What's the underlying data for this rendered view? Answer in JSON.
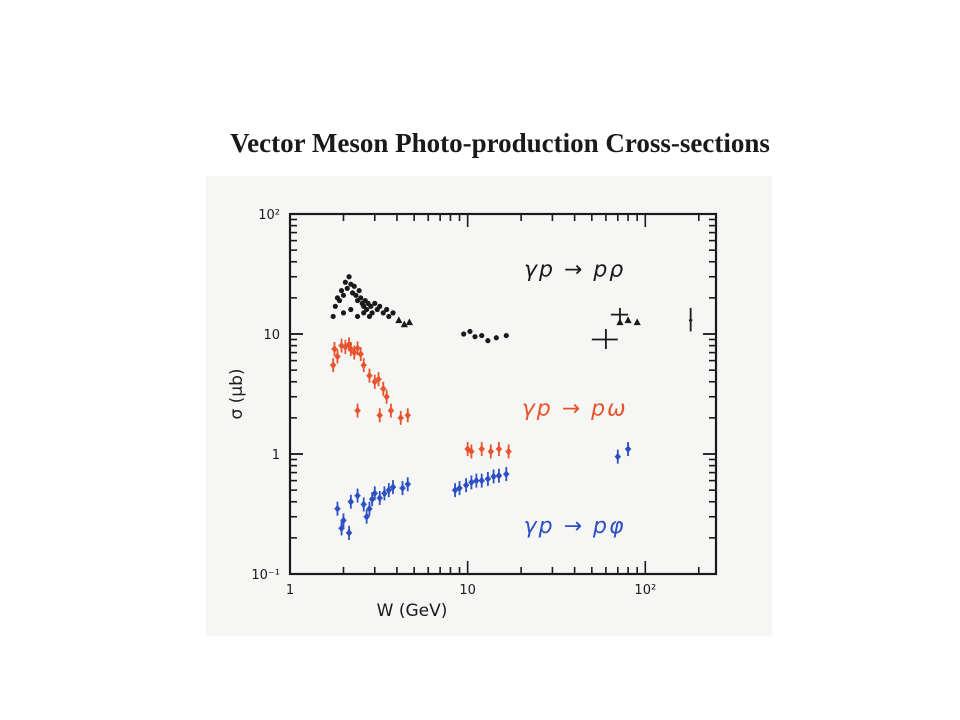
{
  "slide": {
    "title": "Vector Meson Photo-production Cross-sections"
  },
  "colors": {
    "rho": "#1a1a1a",
    "omega": "#e8532d",
    "phi": "#2c4fc4",
    "frame": "#1a1a1a",
    "background": "#f6f7f4"
  },
  "chart_data": {
    "type": "scatter",
    "title": "",
    "xlabel": "W (GeV)",
    "ylabel": "σ (μb)",
    "xscale": "log",
    "yscale": "log",
    "xlim": [
      1,
      250
    ],
    "ylim": [
      0.1,
      100
    ],
    "x_ticks": [
      {
        "value": 1,
        "label": "1"
      },
      {
        "value": 10,
        "label": "10"
      },
      {
        "value": 100,
        "label": "10²"
      }
    ],
    "y_ticks": [
      {
        "value": 0.1,
        "label": "10⁻¹"
      },
      {
        "value": 1,
        "label": "1"
      },
      {
        "value": 10,
        "label": "10"
      },
      {
        "value": 100,
        "label": "10²"
      }
    ],
    "grid": false,
    "series": [
      {
        "key": "rho",
        "marker": "dot",
        "annotation": "γp → pρ",
        "points": [
          [
            1.75,
            14
          ],
          [
            1.8,
            17
          ],
          [
            1.85,
            20
          ],
          [
            1.9,
            19
          ],
          [
            1.95,
            23
          ],
          [
            2.0,
            21
          ],
          [
            2.05,
            27
          ],
          [
            2.1,
            24
          ],
          [
            2.15,
            30
          ],
          [
            2.2,
            26
          ],
          [
            2.25,
            22
          ],
          [
            2.3,
            25
          ],
          [
            2.35,
            21
          ],
          [
            2.4,
            19
          ],
          [
            2.45,
            23
          ],
          [
            2.5,
            20
          ],
          [
            2.55,
            18
          ],
          [
            2.6,
            17
          ],
          [
            2.65,
            19
          ],
          [
            2.7,
            16
          ],
          [
            2.75,
            18
          ],
          [
            2.85,
            17
          ],
          [
            2.9,
            15
          ],
          [
            3.0,
            18
          ],
          [
            3.1,
            16
          ],
          [
            3.2,
            17
          ],
          [
            3.35,
            15
          ],
          [
            3.5,
            16
          ],
          [
            3.6,
            14
          ],
          [
            3.8,
            15
          ],
          [
            2.0,
            15
          ],
          [
            2.2,
            16
          ],
          [
            2.4,
            14
          ],
          [
            2.6,
            15
          ],
          [
            2.8,
            14
          ]
        ]
      },
      {
        "key": "rho-triangles",
        "marker": "triangle",
        "points": [
          [
            4.1,
            13
          ],
          [
            4.4,
            12
          ],
          [
            4.7,
            12.5
          ],
          [
            72,
            12.5
          ],
          [
            80,
            13
          ],
          [
            90,
            12.5
          ]
        ]
      },
      {
        "key": "rho-mid",
        "marker": "dot",
        "points": [
          [
            9.5,
            10
          ],
          [
            10.3,
            10.5
          ],
          [
            11.0,
            9.5
          ],
          [
            12.0,
            9.7
          ],
          [
            13.0,
            8.8
          ],
          [
            14.5,
            9.3
          ],
          [
            16.5,
            9.7
          ]
        ]
      },
      {
        "key": "rho-errorbars",
        "marker": "cross",
        "points": [
          {
            "x": 60,
            "y": 9.0,
            "xerr": [
              50,
              70
            ],
            "yerr": [
              7.5,
              11
            ]
          },
          {
            "x": 72,
            "y": 14.5,
            "xerr": [
              64,
              80
            ],
            "yerr": [
              12.5,
              16.5
            ]
          },
          {
            "x": 180,
            "y": 13.0,
            "xerr": [
              176,
              184
            ],
            "yerr": [
              10.5,
              16.5
            ]
          }
        ]
      },
      {
        "key": "omega",
        "marker": "errorbar",
        "annotation": "γp → pω",
        "points": [
          [
            1.75,
            5.5
          ],
          [
            1.78,
            7.5
          ],
          [
            1.85,
            6.5
          ],
          [
            1.95,
            8
          ],
          [
            2.05,
            7.8
          ],
          [
            2.15,
            8.2
          ],
          [
            2.2,
            7.5
          ],
          [
            2.3,
            7
          ],
          [
            2.4,
            7.6
          ],
          [
            2.5,
            6.8
          ],
          [
            2.6,
            5.5
          ],
          [
            2.8,
            4.5
          ],
          [
            3.0,
            4
          ],
          [
            3.15,
            4.2
          ],
          [
            3.35,
            3.5
          ],
          [
            3.5,
            3
          ],
          [
            2.4,
            2.3
          ],
          [
            3.2,
            2.1
          ],
          [
            3.7,
            2.3
          ],
          [
            4.2,
            2.0
          ],
          [
            4.6,
            2.1
          ],
          [
            10.0,
            1.1
          ],
          [
            10.5,
            1.05
          ],
          [
            12.0,
            1.1
          ],
          [
            13.5,
            1.05
          ],
          [
            15.0,
            1.1
          ],
          [
            17.0,
            1.05
          ]
        ]
      },
      {
        "key": "phi",
        "marker": "errorbar",
        "annotation": "γp → pφ",
        "points": [
          [
            1.85,
            0.35
          ],
          [
            2.0,
            0.28
          ],
          [
            1.95,
            0.24
          ],
          [
            2.15,
            0.22
          ],
          [
            2.2,
            0.4
          ],
          [
            2.4,
            0.45
          ],
          [
            2.6,
            0.38
          ],
          [
            2.7,
            0.3
          ],
          [
            2.8,
            0.35
          ],
          [
            2.9,
            0.42
          ],
          [
            3.0,
            0.47
          ],
          [
            3.2,
            0.43
          ],
          [
            3.4,
            0.47
          ],
          [
            3.6,
            0.5
          ],
          [
            3.8,
            0.53
          ],
          [
            4.3,
            0.52
          ],
          [
            4.6,
            0.56
          ],
          [
            8.5,
            0.5
          ],
          [
            9.0,
            0.52
          ],
          [
            9.8,
            0.55
          ],
          [
            10.5,
            0.58
          ],
          [
            11.2,
            0.6
          ],
          [
            12.0,
            0.6
          ],
          [
            13.0,
            0.62
          ],
          [
            14.0,
            0.65
          ],
          [
            15.0,
            0.66
          ],
          [
            16.5,
            0.68
          ],
          [
            70,
            0.95
          ],
          [
            80,
            1.1
          ]
        ]
      }
    ],
    "annotations": [
      {
        "series": "rho",
        "text": "γp → pρ",
        "x": 40,
        "y": 30
      },
      {
        "series": "omega",
        "text": "γp → pω",
        "x": 40,
        "y": 2.1
      },
      {
        "series": "phi",
        "text": "γp → pφ",
        "x": 40,
        "y": 0.22
      }
    ]
  }
}
